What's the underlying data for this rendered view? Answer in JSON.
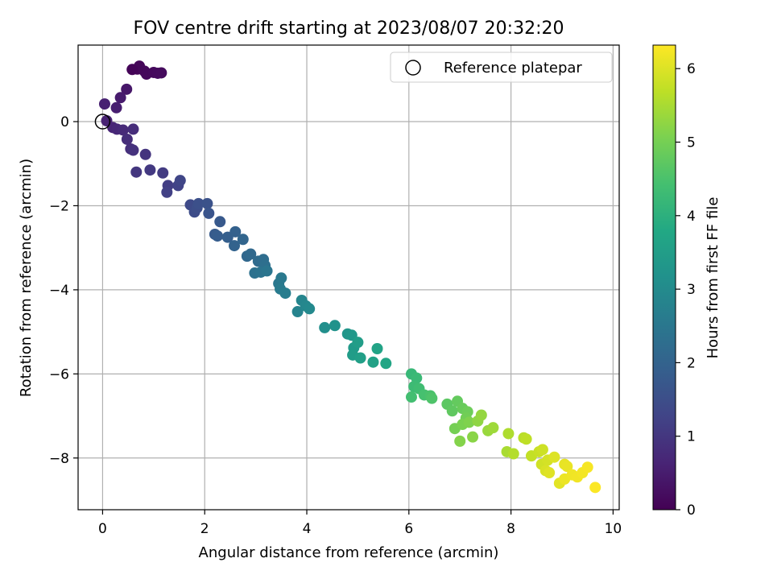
{
  "chart_data": {
    "type": "scatter",
    "title": "FOV centre drift starting at 2023/08/07 20:32:20",
    "xlabel": "Angular distance from reference (arcmin)",
    "ylabel": "Rotation from reference (arcmin)",
    "xlim": [
      -0.48,
      10.12
    ],
    "ylim": [
      -9.23,
      1.82
    ],
    "xticks": [
      0,
      2,
      4,
      6,
      8,
      10
    ],
    "yticks": [
      -8,
      -6,
      -4,
      -2,
      0
    ],
    "grid": true,
    "legend": {
      "label": "Reference platepar",
      "position": "top-right",
      "marker": "open-circle"
    },
    "reference_point": {
      "x": 0,
      "y": 0
    },
    "colorbar": {
      "label": "Hours from first FF file",
      "range": [
        0,
        6.32
      ],
      "ticks": [
        0,
        1,
        2,
        3,
        4,
        5,
        6
      ],
      "colormap": "viridis"
    },
    "points": [
      {
        "x": 0.68,
        "y": 1.25,
        "t": 0.08
      },
      {
        "x": 0.72,
        "y": 1.32,
        "t": 0.1
      },
      {
        "x": 0.82,
        "y": 1.2,
        "t": 0.12
      },
      {
        "x": 0.86,
        "y": 1.13,
        "t": 0.13
      },
      {
        "x": 1.0,
        "y": 1.17,
        "t": 0.15
      },
      {
        "x": 1.08,
        "y": 1.15,
        "t": 0.17
      },
      {
        "x": 1.15,
        "y": 1.16,
        "t": 0.18
      },
      {
        "x": 0.58,
        "y": 1.24,
        "t": 0.05
      },
      {
        "x": 0.47,
        "y": 0.77,
        "t": 0.4
      },
      {
        "x": 0.35,
        "y": 0.57,
        "t": 0.47
      },
      {
        "x": 0.27,
        "y": 0.33,
        "t": 0.53
      },
      {
        "x": 0.04,
        "y": 0.42,
        "t": 0.58
      },
      {
        "x": 0.08,
        "y": 0.02,
        "t": 0.6
      },
      {
        "x": 0.2,
        "y": -0.14,
        "t": 0.65
      },
      {
        "x": 0.28,
        "y": -0.18,
        "t": 0.7
      },
      {
        "x": 0.4,
        "y": -0.2,
        "t": 0.75
      },
      {
        "x": 0.6,
        "y": -0.18,
        "t": 0.8
      },
      {
        "x": 0.48,
        "y": -0.42,
        "t": 0.82
      },
      {
        "x": 0.55,
        "y": -0.65,
        "t": 0.85
      },
      {
        "x": 0.6,
        "y": -0.68,
        "t": 0.9
      },
      {
        "x": 0.84,
        "y": -0.78,
        "t": 0.95
      },
      {
        "x": 0.66,
        "y": -1.2,
        "t": 1.0
      },
      {
        "x": 0.93,
        "y": -1.15,
        "t": 1.05
      },
      {
        "x": 1.18,
        "y": -1.22,
        "t": 1.1
      },
      {
        "x": 1.28,
        "y": -1.52,
        "t": 1.15
      },
      {
        "x": 1.26,
        "y": -1.68,
        "t": 1.2
      },
      {
        "x": 1.48,
        "y": -1.52,
        "t": 1.25
      },
      {
        "x": 1.52,
        "y": -1.4,
        "t": 1.3
      },
      {
        "x": 1.72,
        "y": -1.98,
        "t": 1.4
      },
      {
        "x": 1.8,
        "y": -2.15,
        "t": 1.45
      },
      {
        "x": 1.85,
        "y": -2.05,
        "t": 1.5
      },
      {
        "x": 1.88,
        "y": -1.95,
        "t": 1.55
      },
      {
        "x": 2.05,
        "y": -1.95,
        "t": 1.6
      },
      {
        "x": 2.08,
        "y": -2.18,
        "t": 1.65
      },
      {
        "x": 2.3,
        "y": -2.38,
        "t": 1.75
      },
      {
        "x": 2.2,
        "y": -2.68,
        "t": 1.8
      },
      {
        "x": 2.25,
        "y": -2.72,
        "t": 1.85
      },
      {
        "x": 2.45,
        "y": -2.75,
        "t": 1.9
      },
      {
        "x": 2.6,
        "y": -2.62,
        "t": 1.95
      },
      {
        "x": 2.58,
        "y": -2.95,
        "t": 2.0
      },
      {
        "x": 2.75,
        "y": -2.8,
        "t": 2.05
      },
      {
        "x": 2.83,
        "y": -3.2,
        "t": 2.1
      },
      {
        "x": 2.9,
        "y": -3.15,
        "t": 2.15
      },
      {
        "x": 3.05,
        "y": -3.32,
        "t": 2.2
      },
      {
        "x": 3.15,
        "y": -3.28,
        "t": 2.25
      },
      {
        "x": 3.18,
        "y": -3.42,
        "t": 2.3
      },
      {
        "x": 2.98,
        "y": -3.6,
        "t": 2.35
      },
      {
        "x": 3.1,
        "y": -3.58,
        "t": 2.4
      },
      {
        "x": 3.22,
        "y": -3.55,
        "t": 2.45
      },
      {
        "x": 3.45,
        "y": -3.85,
        "t": 2.5
      },
      {
        "x": 3.5,
        "y": -3.72,
        "t": 2.55
      },
      {
        "x": 3.48,
        "y": -3.98,
        "t": 2.6
      },
      {
        "x": 3.58,
        "y": -4.08,
        "t": 2.65
      },
      {
        "x": 3.82,
        "y": -4.52,
        "t": 2.8
      },
      {
        "x": 3.9,
        "y": -4.25,
        "t": 2.85
      },
      {
        "x": 3.98,
        "y": -4.38,
        "t": 2.9
      },
      {
        "x": 4.05,
        "y": -4.45,
        "t": 2.95
      },
      {
        "x": 4.35,
        "y": -4.9,
        "t": 3.1
      },
      {
        "x": 4.55,
        "y": -4.85,
        "t": 3.2
      },
      {
        "x": 4.8,
        "y": -5.05,
        "t": 3.3
      },
      {
        "x": 4.88,
        "y": -5.08,
        "t": 3.35
      },
      {
        "x": 4.92,
        "y": -5.38,
        "t": 3.4
      },
      {
        "x": 4.9,
        "y": -5.55,
        "t": 3.45
      },
      {
        "x": 5.0,
        "y": -5.25,
        "t": 3.5
      },
      {
        "x": 5.05,
        "y": -5.62,
        "t": 3.55
      },
      {
        "x": 5.3,
        "y": -5.72,
        "t": 3.6
      },
      {
        "x": 5.38,
        "y": -5.4,
        "t": 3.65
      },
      {
        "x": 5.55,
        "y": -5.75,
        "t": 3.7
      },
      {
        "x": 6.05,
        "y": -6.0,
        "t": 4.2
      },
      {
        "x": 6.15,
        "y": -6.1,
        "t": 4.25
      },
      {
        "x": 6.1,
        "y": -6.3,
        "t": 4.3
      },
      {
        "x": 6.2,
        "y": -6.35,
        "t": 4.35
      },
      {
        "x": 6.05,
        "y": -6.55,
        "t": 4.4
      },
      {
        "x": 6.3,
        "y": -6.5,
        "t": 4.45
      },
      {
        "x": 6.42,
        "y": -6.52,
        "t": 4.5
      },
      {
        "x": 6.45,
        "y": -6.58,
        "t": 4.55
      },
      {
        "x": 6.75,
        "y": -6.72,
        "t": 4.7
      },
      {
        "x": 6.85,
        "y": -6.88,
        "t": 4.75
      },
      {
        "x": 6.95,
        "y": -6.65,
        "t": 4.8
      },
      {
        "x": 7.05,
        "y": -6.82,
        "t": 4.85
      },
      {
        "x": 7.15,
        "y": -6.9,
        "t": 4.9
      },
      {
        "x": 7.12,
        "y": -7.05,
        "t": 4.95
      },
      {
        "x": 6.9,
        "y": -7.3,
        "t": 5.0
      },
      {
        "x": 7.05,
        "y": -7.2,
        "t": 5.05
      },
      {
        "x": 7.18,
        "y": -7.15,
        "t": 5.1
      },
      {
        "x": 7.0,
        "y": -7.6,
        "t": 5.15
      },
      {
        "x": 7.25,
        "y": -7.5,
        "t": 5.2
      },
      {
        "x": 7.35,
        "y": -7.12,
        "t": 5.25
      },
      {
        "x": 7.42,
        "y": -6.98,
        "t": 5.3
      },
      {
        "x": 7.55,
        "y": -7.35,
        "t": 5.35
      },
      {
        "x": 7.65,
        "y": -7.28,
        "t": 5.4
      },
      {
        "x": 7.92,
        "y": -7.85,
        "t": 5.5
      },
      {
        "x": 7.95,
        "y": -7.42,
        "t": 5.55
      },
      {
        "x": 8.05,
        "y": -7.9,
        "t": 5.6
      },
      {
        "x": 8.25,
        "y": -7.52,
        "t": 5.65
      },
      {
        "x": 8.3,
        "y": -7.55,
        "t": 5.7
      },
      {
        "x": 8.4,
        "y": -7.95,
        "t": 5.75
      },
      {
        "x": 8.55,
        "y": -7.85,
        "t": 5.8
      },
      {
        "x": 8.62,
        "y": -7.8,
        "t": 5.85
      },
      {
        "x": 8.6,
        "y": -8.15,
        "t": 5.88
      },
      {
        "x": 8.72,
        "y": -8.05,
        "t": 5.92
      },
      {
        "x": 8.68,
        "y": -8.3,
        "t": 5.95
      },
      {
        "x": 8.85,
        "y": -7.98,
        "t": 6.0
      },
      {
        "x": 8.75,
        "y": -8.35,
        "t": 6.02
      },
      {
        "x": 8.95,
        "y": -8.6,
        "t": 6.05
      },
      {
        "x": 9.05,
        "y": -8.15,
        "t": 6.1
      },
      {
        "x": 9.1,
        "y": -8.2,
        "t": 6.12
      },
      {
        "x": 9.05,
        "y": -8.5,
        "t": 6.15
      },
      {
        "x": 9.2,
        "y": -8.4,
        "t": 6.18
      },
      {
        "x": 9.3,
        "y": -8.45,
        "t": 6.2
      },
      {
        "x": 9.4,
        "y": -8.35,
        "t": 6.22
      },
      {
        "x": 9.5,
        "y": -8.22,
        "t": 6.25
      },
      {
        "x": 9.65,
        "y": -8.7,
        "t": 6.3
      }
    ]
  },
  "colors": {
    "grid": "#b0b0b0",
    "axis": "#000000",
    "viridis": [
      "#440154",
      "#482475",
      "#414487",
      "#355f8d",
      "#2a788e",
      "#21918c",
      "#22a884",
      "#44bf70",
      "#7ad151",
      "#bddf26",
      "#fde725"
    ]
  }
}
